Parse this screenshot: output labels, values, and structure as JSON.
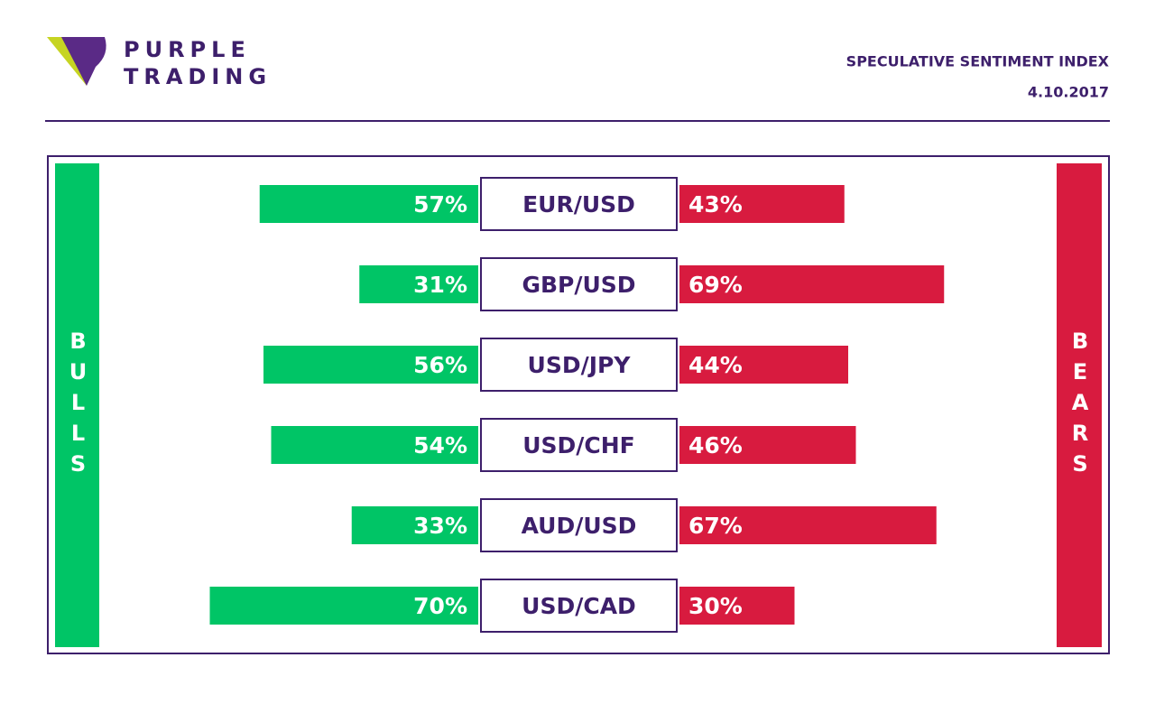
{
  "brand": [
    "PURPLE",
    "TRADING"
  ],
  "chart_data": {
    "type": "butterfly",
    "title": "SPECULATIVE SENTIMENT INDEX",
    "subtitle": "4.10.2017",
    "categories": [
      "EUR/USD",
      "GBP/USD",
      "USD/JPY",
      "USD/CHF",
      "AUD/USD",
      "USD/CAD"
    ],
    "series": [
      {
        "name": "BULLS",
        "color": "#00c566",
        "values": [
          57,
          31,
          56,
          54,
          33,
          70
        ],
        "value_labels": [
          "57%",
          "31%",
          "56%",
          "54%",
          "33%",
          "70%"
        ]
      },
      {
        "name": "BEARS",
        "color": "#d81b3f",
        "values": [
          43,
          69,
          44,
          46,
          67,
          30
        ],
        "value_labels": [
          "43%",
          "69%",
          "44%",
          "46%",
          "67%",
          "30%"
        ]
      }
    ]
  }
}
